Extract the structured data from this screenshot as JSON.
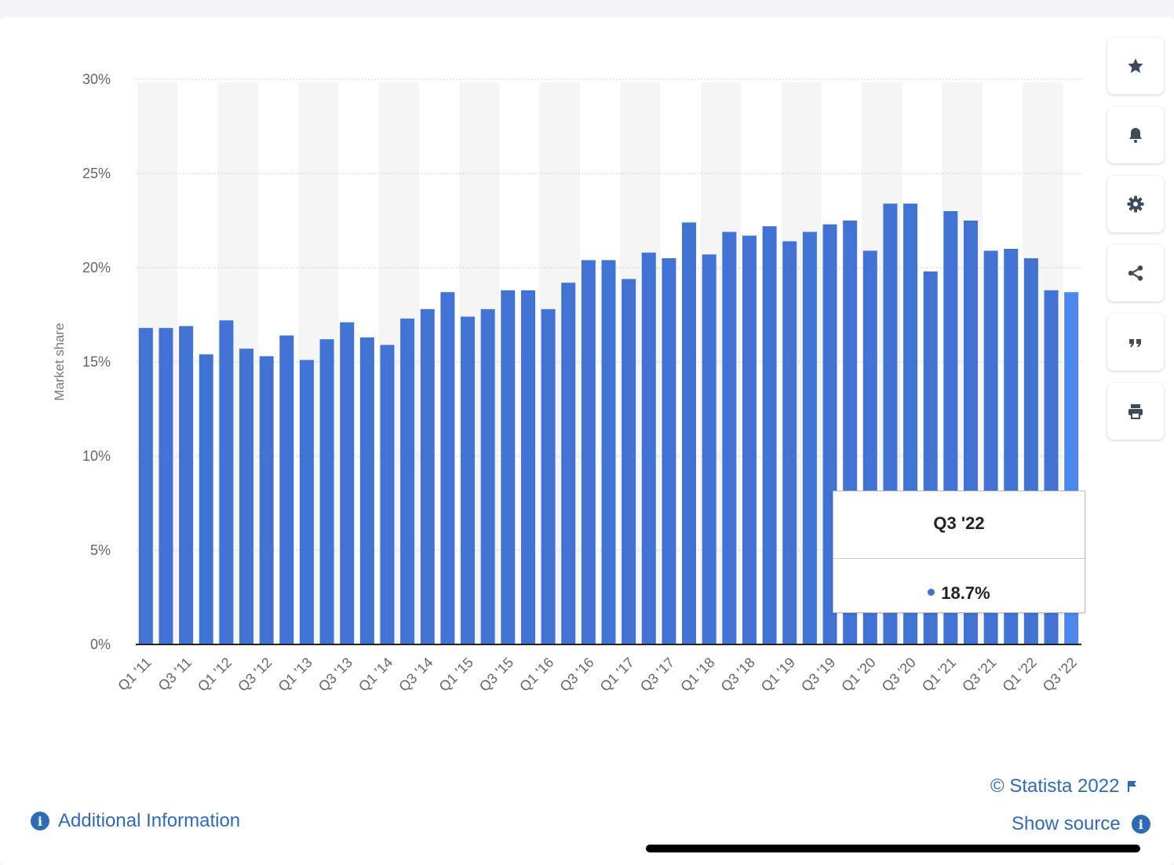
{
  "chart_data": {
    "type": "bar",
    "title": "",
    "ylabel": "Market share",
    "xlabel": "",
    "ylim": [
      0,
      30
    ],
    "yticks": [
      "0%",
      "5%",
      "10%",
      "15%",
      "20%",
      "25%",
      "30%"
    ],
    "categories": [
      "Q1 '11",
      "Q2 '11",
      "Q3 '11",
      "Q4 '11",
      "Q1 '12",
      "Q2 '12",
      "Q3 '12",
      "Q4 '12",
      "Q1 '13",
      "Q2 '13",
      "Q3 '13",
      "Q4 '13",
      "Q1 '14",
      "Q2 '14",
      "Q3 '14",
      "Q4 '14",
      "Q1 '15",
      "Q2 '15",
      "Q3 '15",
      "Q4 '15",
      "Q1 '16",
      "Q2 '16",
      "Q3 '16",
      "Q4 '16",
      "Q1 '17",
      "Q2 '17",
      "Q3 '17",
      "Q4 '17",
      "Q1 '18",
      "Q2 '18",
      "Q3 '18",
      "Q4 '18",
      "Q1 '19",
      "Q2 '19",
      "Q3 '19",
      "Q4 '19",
      "Q1 '20",
      "Q2 '20",
      "Q3 '20",
      "Q4 '20",
      "Q1 '21",
      "Q2 '21",
      "Q3 '21",
      "Q4 '21",
      "Q1 '22",
      "Q2 '22",
      "Q3 '22"
    ],
    "x_tick_labels": [
      "Q1 '11",
      "Q3 '11",
      "Q1 '12",
      "Q3 '12",
      "Q1 '13",
      "Q3 '13",
      "Q1 '14",
      "Q3 '14",
      "Q1 '15",
      "Q3 '15",
      "Q1 '16",
      "Q3 '16",
      "Q1 '17",
      "Q3 '17",
      "Q1 '18",
      "Q3 '18",
      "Q1 '19",
      "Q3 '19",
      "Q1 '20",
      "Q3 '20",
      "Q1 '21",
      "Q3 '21",
      "Q1 '22",
      "Q3 '22"
    ],
    "values": [
      16.8,
      16.8,
      16.9,
      15.4,
      17.2,
      15.7,
      15.3,
      16.4,
      15.1,
      16.2,
      17.1,
      16.3,
      15.9,
      17.3,
      17.8,
      18.7,
      17.4,
      17.8,
      18.8,
      18.8,
      17.8,
      19.2,
      20.4,
      20.4,
      19.4,
      20.8,
      20.5,
      22.4,
      20.7,
      21.9,
      21.7,
      22.2,
      21.4,
      21.9,
      22.3,
      22.5,
      20.9,
      23.4,
      23.4,
      19.8,
      23.0,
      22.5,
      20.9,
      21.0,
      20.5,
      18.8,
      18.7
    ],
    "highlight_index": 46,
    "grid": true,
    "colors": {
      "bar": "#4173d5",
      "bar_highlight": "#4b87ec"
    }
  },
  "tooltip": {
    "title": "Q3 '22",
    "value": "18.7%"
  },
  "toolbar": [
    {
      "icon": "star-icon",
      "name": "favorite-button"
    },
    {
      "icon": "bell-icon",
      "name": "notification-button"
    },
    {
      "icon": "gear-icon",
      "name": "settings-button"
    },
    {
      "icon": "share-icon",
      "name": "share-button"
    },
    {
      "icon": "quote-icon",
      "name": "cite-button"
    },
    {
      "icon": "print-icon",
      "name": "print-button"
    }
  ],
  "footer": {
    "copyright": "© Statista 2022",
    "show_source": "Show source",
    "additional_info": "Additional Information"
  }
}
